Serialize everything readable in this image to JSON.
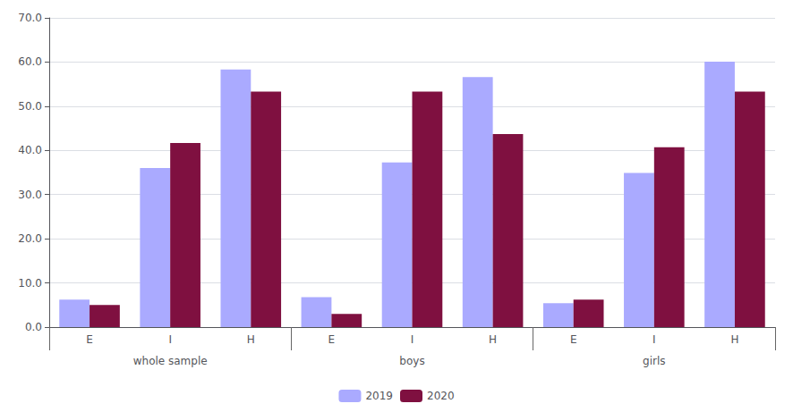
{
  "chart_data": {
    "type": "bar",
    "categories": [
      "E",
      "I",
      "H",
      "E",
      "I",
      "H",
      "E",
      "I",
      "H"
    ],
    "groups": [
      "whole sample",
      "boys",
      "girls"
    ],
    "series": [
      {
        "name": "2019",
        "color": "#aaaaff",
        "values": [
          6.2,
          36.0,
          58.3,
          6.8,
          37.3,
          56.6,
          5.4,
          34.9,
          60.1
        ]
      },
      {
        "name": "2020",
        "color": "#7f1040",
        "values": [
          5.0,
          41.7,
          53.3,
          3.0,
          53.3,
          43.7,
          6.2,
          40.7,
          53.3
        ]
      }
    ],
    "ylim": [
      0,
      70
    ],
    "yticks": [
      {
        "value": 0,
        "label": "0.0"
      },
      {
        "value": 10,
        "label": "10.0"
      },
      {
        "value": 20,
        "label": "20.0"
      },
      {
        "value": 30,
        "label": "30.0"
      },
      {
        "value": 40,
        "label": "40.0"
      },
      {
        "value": 50,
        "label": "50.0"
      },
      {
        "value": 60,
        "label": "60.0"
      },
      {
        "value": 70,
        "label": "70.0"
      }
    ],
    "grid": true,
    "legend": "bottom"
  }
}
